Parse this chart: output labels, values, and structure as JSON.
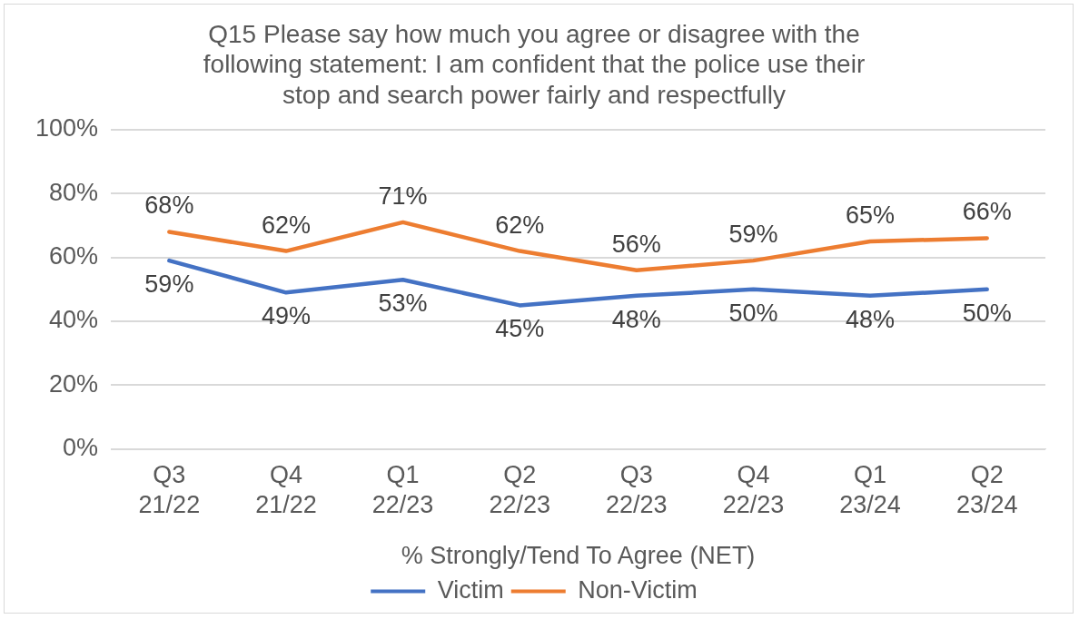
{
  "chart_data": {
    "type": "line",
    "title": "Q15 Please say how much you agree or disagree with the following statement: I am confident that the police use their stop and search power fairly and respectfully",
    "xlabel": "% Strongly/Tend To Agree (NET)",
    "categories": [
      "Q3 21/22",
      "Q4 21/22",
      "Q1 22/23",
      "Q2 22/23",
      "Q3 22/23",
      "Q4 22/23",
      "Q1 23/24",
      "Q2 23/24"
    ],
    "series": [
      {
        "name": "Victim",
        "color": "#4472c4",
        "values": [
          59,
          49,
          53,
          45,
          48,
          50,
          48,
          50
        ],
        "value_labels": [
          "59%",
          "49%",
          "53%",
          "45%",
          "48%",
          "50%",
          "48%",
          "50%"
        ]
      },
      {
        "name": "Non-Victim",
        "color": "#ed7d31",
        "values": [
          68,
          62,
          71,
          62,
          56,
          59,
          65,
          66
        ],
        "value_labels": [
          "68%",
          "62%",
          "71%",
          "62%",
          "56%",
          "59%",
          "65%",
          "66%"
        ]
      }
    ],
    "ylim": [
      0,
      100
    ],
    "yticks": [
      {
        "value": 0,
        "label": "0%"
      },
      {
        "value": 20,
        "label": "20%"
      },
      {
        "value": 40,
        "label": "40%"
      },
      {
        "value": 60,
        "label": "60%"
      },
      {
        "value": 80,
        "label": "80%"
      },
      {
        "value": 100,
        "label": "100%"
      }
    ],
    "grid": "y",
    "legend": "bottom",
    "marker": "none",
    "line_style": "solid"
  }
}
